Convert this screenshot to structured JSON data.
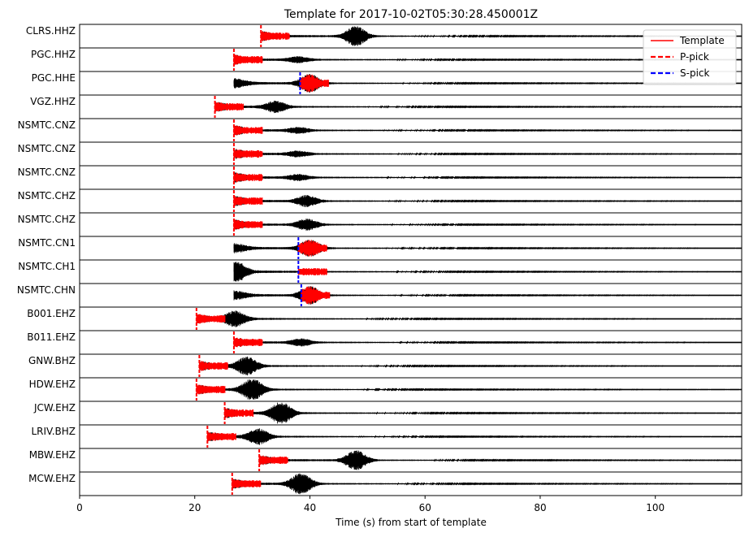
{
  "chart_data": {
    "type": "line",
    "title": "Template for 2017-10-02T05:30:28.450001Z",
    "xlabel": "Time (s) from start of template",
    "ylabel": "",
    "xlim": [
      0,
      115
    ],
    "xticks": [
      0,
      20,
      40,
      60,
      80,
      100
    ],
    "xtick_labels": [
      "0",
      "20",
      "40",
      "60",
      "80",
      "100"
    ],
    "grid": false,
    "legend_position": "top-right",
    "legend": [
      {
        "label": "Template",
        "color": "#ff0000",
        "style": "solid"
      },
      {
        "label": "P-pick",
        "color": "#ff0000",
        "style": "dashed"
      },
      {
        "label": "S-pick",
        "color": "#0000ff",
        "style": "dashed"
      }
    ],
    "colors": {
      "waveform": "#000000",
      "template": "#ff0000",
      "s_pick": "#0000ff"
    },
    "traces": [
      {
        "name": "CLRS.HHZ",
        "trace_start": 31.5,
        "template_start": 31.5,
        "template_end": 36.5,
        "p_pick": 31.5,
        "s_pick": null,
        "peak_time": 48,
        "peak_amp": 0.9,
        "coda_end": 115
      },
      {
        "name": "PGC.HHZ",
        "trace_start": 26.8,
        "template_start": 26.8,
        "template_end": 31.8,
        "p_pick": 26.8,
        "s_pick": null,
        "peak_time": 38,
        "peak_amp": 0.25,
        "coda_end": 115
      },
      {
        "name": "PGC.HHE",
        "trace_start": 26.8,
        "template_start": 38.3,
        "template_end": 43.3,
        "p_pick": null,
        "s_pick": 38.3,
        "peak_time": 40,
        "peak_amp": 0.8,
        "coda_end": 115
      },
      {
        "name": "VGZ.HHZ",
        "trace_start": 23.5,
        "template_start": 23.5,
        "template_end": 28.5,
        "p_pick": 23.5,
        "s_pick": null,
        "peak_time": 34,
        "peak_amp": 0.5,
        "coda_end": 115
      },
      {
        "name": "NSMTC.CNZ",
        "trace_start": 26.8,
        "template_start": 26.8,
        "template_end": 31.8,
        "p_pick": 26.8,
        "s_pick": null,
        "peak_time": 38,
        "peak_amp": 0.25,
        "coda_end": 115
      },
      {
        "name": "NSMTC.CNZ",
        "trace_start": 26.8,
        "template_start": 26.8,
        "template_end": 31.8,
        "p_pick": 26.8,
        "s_pick": null,
        "peak_time": 38,
        "peak_amp": 0.25,
        "coda_end": 115
      },
      {
        "name": "NSMTC.CNZ",
        "trace_start": 26.8,
        "template_start": 26.8,
        "template_end": 31.8,
        "p_pick": 26.8,
        "s_pick": null,
        "peak_time": 38,
        "peak_amp": 0.25,
        "coda_end": 115
      },
      {
        "name": "NSMTC.CHZ",
        "trace_start": 26.8,
        "template_start": 26.8,
        "template_end": 31.8,
        "p_pick": 26.8,
        "s_pick": null,
        "peak_time": 39.5,
        "peak_amp": 0.5,
        "coda_end": 115
      },
      {
        "name": "NSMTC.CHZ",
        "trace_start": 26.8,
        "template_start": 26.8,
        "template_end": 31.8,
        "p_pick": 26.8,
        "s_pick": null,
        "peak_time": 39.5,
        "peak_amp": 0.5,
        "coda_end": 115
      },
      {
        "name": "NSMTC.CN1",
        "trace_start": 26.8,
        "template_start": 38.0,
        "template_end": 43.0,
        "p_pick": null,
        "s_pick": 38.0,
        "peak_time": 40,
        "peak_amp": 0.75,
        "coda_end": 115
      },
      {
        "name": "NSMTC.CH1",
        "trace_start": 26.8,
        "template_start": 38.0,
        "template_end": 43.0,
        "p_pick": null,
        "s_pick": 38.0,
        "peak_time": 27,
        "peak_amp": 0.6,
        "coda_end": 115
      },
      {
        "name": "NSMTC.CHN",
        "trace_start": 26.8,
        "template_start": 38.5,
        "template_end": 43.5,
        "p_pick": null,
        "s_pick": 38.5,
        "peak_time": 40,
        "peak_amp": 0.8,
        "coda_end": 115
      },
      {
        "name": "B001.EHZ",
        "trace_start": 20.3,
        "template_start": 20.3,
        "template_end": 25.3,
        "p_pick": 20.3,
        "s_pick": null,
        "peak_time": 27,
        "peak_amp": 0.7,
        "coda_end": 115
      },
      {
        "name": "B011.EHZ",
        "trace_start": 26.8,
        "template_start": 26.8,
        "template_end": 31.8,
        "p_pick": 26.8,
        "s_pick": null,
        "peak_time": 38.5,
        "peak_amp": 0.3,
        "coda_end": 115
      },
      {
        "name": "GNW.BHZ",
        "trace_start": 20.8,
        "template_start": 20.8,
        "template_end": 25.8,
        "p_pick": 20.8,
        "s_pick": null,
        "peak_time": 29,
        "peak_amp": 0.8,
        "coda_end": 115
      },
      {
        "name": "HDW.EHZ",
        "trace_start": 20.3,
        "template_start": 20.3,
        "template_end": 25.3,
        "p_pick": 20.3,
        "s_pick": null,
        "peak_time": 30,
        "peak_amp": 1.0,
        "coda_end": 115
      },
      {
        "name": "JCW.EHZ",
        "trace_start": 25.2,
        "template_start": 25.2,
        "template_end": 30.2,
        "p_pick": 25.2,
        "s_pick": null,
        "peak_time": 35,
        "peak_amp": 1.0,
        "coda_end": 115
      },
      {
        "name": "LRIV.BHZ",
        "trace_start": 22.2,
        "template_start": 22.2,
        "template_end": 27.2,
        "p_pick": 22.2,
        "s_pick": null,
        "peak_time": 31,
        "peak_amp": 0.7,
        "coda_end": 115
      },
      {
        "name": "MBW.EHZ",
        "trace_start": 31.2,
        "template_start": 31.2,
        "template_end": 36.2,
        "p_pick": 31.2,
        "s_pick": null,
        "peak_time": 48,
        "peak_amp": 0.9,
        "coda_end": 115
      },
      {
        "name": "MCW.EHZ",
        "trace_start": 26.5,
        "template_start": 26.5,
        "template_end": 31.5,
        "p_pick": 26.5,
        "s_pick": null,
        "peak_time": 38.5,
        "peak_amp": 1.0,
        "coda_end": 115
      }
    ]
  }
}
